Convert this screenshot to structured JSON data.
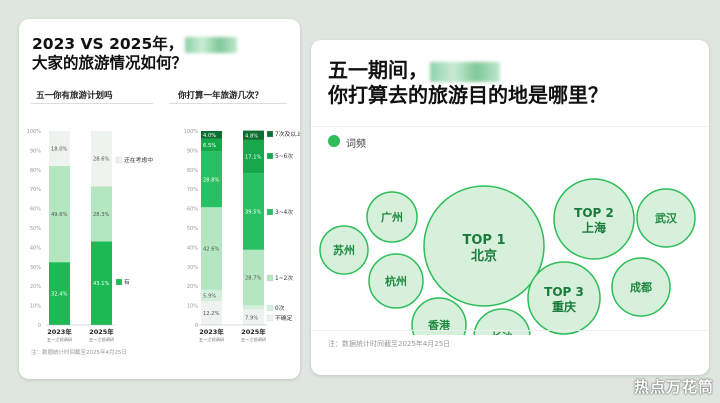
{
  "left_card": {
    "title_line1": "2023 VS 2025年，",
    "title_line2": "大家的旅游情况如何？",
    "note": "注：数据统计时间截至2025年4月25日"
  },
  "right_card": {
    "title_line1": "五一期间，",
    "title_line2": "你打算去的旅游目的地是哪里？",
    "legend": "词频",
    "note": "注：数据统计时间截至2025年4月25日"
  },
  "watermark": "热点万花筒",
  "chart_data": [
    {
      "type": "bar",
      "stacked": true,
      "title": "五一你有旅游计划吗",
      "categories": [
        "2023年",
        "2025年"
      ],
      "category_sublabels": [
        "五一之前调研",
        "五一之前调研"
      ],
      "series": [
        {
          "name": "有",
          "values": [
            32.4,
            43.1
          ],
          "color": "#1db954"
        },
        {
          "name": "",
          "values": [
            49.6,
            28.3
          ],
          "color": "#b4e6c2"
        },
        {
          "name": "还在考虑中",
          "values": [
            18.0,
            28.6
          ],
          "color": "#eef3ef"
        }
      ],
      "data_labels": [
        [
          "32.4%",
          "49.6%",
          "18.0%"
        ],
        [
          "43.1%",
          "28.3%",
          "28.6%"
        ]
      ],
      "ylim": [
        0,
        100
      ],
      "yticks": [
        "0",
        "10%",
        "20%",
        "30%",
        "40%",
        "50%",
        "60%",
        "70%",
        "80%",
        "90%",
        "100%"
      ]
    },
    {
      "type": "bar",
      "stacked": true,
      "title": "你打算一年旅游几次？",
      "categories": [
        "2023年",
        "2025年"
      ],
      "category_sublabels": [
        "五一之前调研",
        "五一之前调研"
      ],
      "series": [
        {
          "name": "不确定",
          "values": [
            12.2,
            7.9
          ],
          "color": "#eef3ef"
        },
        {
          "name": "0次",
          "values": [
            5.9,
            2.2
          ],
          "color": "#d5efdd"
        },
        {
          "name": "1~2次",
          "values": [
            42.6,
            28.7
          ],
          "color": "#b4e6c2"
        },
        {
          "name": "3~4次",
          "values": [
            28.8,
            39.5
          ],
          "color": "#28c062"
        },
        {
          "name": "5~6次",
          "values": [
            6.5,
            17.1
          ],
          "color": "#17a84b"
        },
        {
          "name": "7次及以上",
          "values": [
            4.0,
            4.8
          ],
          "color": "#0c6e30"
        }
      ],
      "data_labels": [
        [
          "12.2%",
          "5.9%",
          "42.6%",
          "28.8%",
          "6.5%",
          "4.0%"
        ],
        [
          "7.9%",
          "",
          "28.7%",
          "39.5%",
          "17.1%",
          "4.8%"
        ]
      ],
      "ylim": [
        0,
        100
      ],
      "yticks": [
        "0",
        "10%",
        "20%",
        "30%",
        "40%",
        "50%",
        "60%",
        "70%",
        "80%",
        "90%",
        "100%"
      ]
    },
    {
      "type": "bubble",
      "title": "五一期间，你打算去的旅游目的地是哪里？",
      "legend": "词频",
      "items": [
        {
          "label": "TOP 1 北京",
          "line1": "TOP 1",
          "line2": "北京",
          "rank": 1,
          "size": 100
        },
        {
          "label": "TOP 2 上海",
          "line1": "TOP 2",
          "line2": "上海",
          "rank": 2,
          "size": 48
        },
        {
          "label": "TOP 3 重庆",
          "line1": "TOP 3",
          "line2": "重庆",
          "rank": 3,
          "size": 40
        },
        {
          "label": "武汉",
          "line1": "武汉",
          "line2": "",
          "size": 28
        },
        {
          "label": "成都",
          "line1": "成都",
          "line2": "",
          "size": 28
        },
        {
          "label": "广州",
          "line1": "广州",
          "line2": "",
          "size": 22
        },
        {
          "label": "杭州",
          "line1": "杭州",
          "line2": "",
          "size": 22
        },
        {
          "label": "香港",
          "line1": "香港",
          "line2": "",
          "size": 22
        },
        {
          "label": "长沙",
          "line1": "长沙",
          "line2": "",
          "size": 22
        },
        {
          "label": "苏州",
          "line1": "苏州",
          "line2": "",
          "size": 18
        }
      ]
    }
  ]
}
